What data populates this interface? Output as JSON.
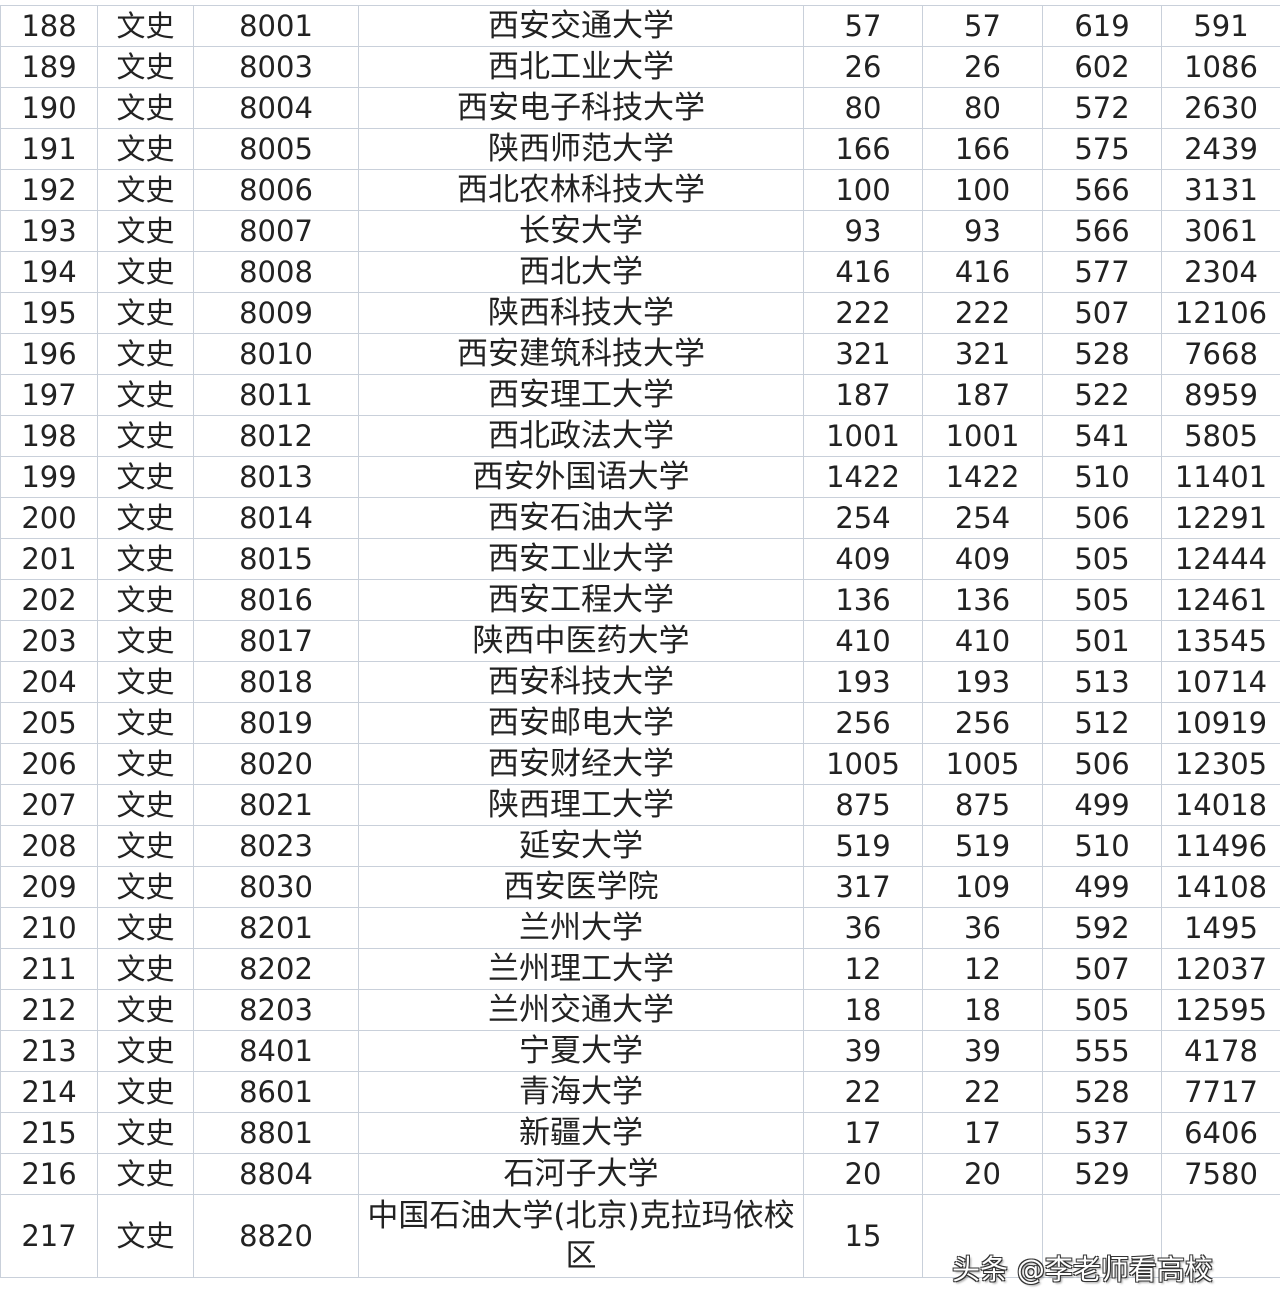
{
  "table": {
    "rows": [
      [
        "188",
        "文史",
        "8001",
        "西安交通大学",
        "57",
        "57",
        "619",
        "591"
      ],
      [
        "189",
        "文史",
        "8003",
        "西北工业大学",
        "26",
        "26",
        "602",
        "1086"
      ],
      [
        "190",
        "文史",
        "8004",
        "西安电子科技大学",
        "80",
        "80",
        "572",
        "2630"
      ],
      [
        "191",
        "文史",
        "8005",
        "陕西师范大学",
        "166",
        "166",
        "575",
        "2439"
      ],
      [
        "192",
        "文史",
        "8006",
        "西北农林科技大学",
        "100",
        "100",
        "566",
        "3131"
      ],
      [
        "193",
        "文史",
        "8007",
        "长安大学",
        "93",
        "93",
        "566",
        "3061"
      ],
      [
        "194",
        "文史",
        "8008",
        "西北大学",
        "416",
        "416",
        "577",
        "2304"
      ],
      [
        "195",
        "文史",
        "8009",
        "陕西科技大学",
        "222",
        "222",
        "507",
        "12106"
      ],
      [
        "196",
        "文史",
        "8010",
        "西安建筑科技大学",
        "321",
        "321",
        "528",
        "7668"
      ],
      [
        "197",
        "文史",
        "8011",
        "西安理工大学",
        "187",
        "187",
        "522",
        "8959"
      ],
      [
        "198",
        "文史",
        "8012",
        "西北政法大学",
        "1001",
        "1001",
        "541",
        "5805"
      ],
      [
        "199",
        "文史",
        "8013",
        "西安外国语大学",
        "1422",
        "1422",
        "510",
        "11401"
      ],
      [
        "200",
        "文史",
        "8014",
        "西安石油大学",
        "254",
        "254",
        "506",
        "12291"
      ],
      [
        "201",
        "文史",
        "8015",
        "西安工业大学",
        "409",
        "409",
        "505",
        "12444"
      ],
      [
        "202",
        "文史",
        "8016",
        "西安工程大学",
        "136",
        "136",
        "505",
        "12461"
      ],
      [
        "203",
        "文史",
        "8017",
        "陕西中医药大学",
        "410",
        "410",
        "501",
        "13545"
      ],
      [
        "204",
        "文史",
        "8018",
        "西安科技大学",
        "193",
        "193",
        "513",
        "10714"
      ],
      [
        "205",
        "文史",
        "8019",
        "西安邮电大学",
        "256",
        "256",
        "512",
        "10919"
      ],
      [
        "206",
        "文史",
        "8020",
        "西安财经大学",
        "1005",
        "1005",
        "506",
        "12305"
      ],
      [
        "207",
        "文史",
        "8021",
        "陕西理工大学",
        "875",
        "875",
        "499",
        "14018"
      ],
      [
        "208",
        "文史",
        "8023",
        "延安大学",
        "519",
        "519",
        "510",
        "11496"
      ],
      [
        "209",
        "文史",
        "8030",
        "西安医学院",
        "317",
        "109",
        "499",
        "14108"
      ],
      [
        "210",
        "文史",
        "8201",
        "兰州大学",
        "36",
        "36",
        "592",
        "1495"
      ],
      [
        "211",
        "文史",
        "8202",
        "兰州理工大学",
        "12",
        "12",
        "507",
        "12037"
      ],
      [
        "212",
        "文史",
        "8203",
        "兰州交通大学",
        "18",
        "18",
        "505",
        "12595"
      ],
      [
        "213",
        "文史",
        "8401",
        "宁夏大学",
        "39",
        "39",
        "555",
        "4178"
      ],
      [
        "214",
        "文史",
        "8601",
        "青海大学",
        "22",
        "22",
        "528",
        "7717"
      ],
      [
        "215",
        "文史",
        "8801",
        "新疆大学",
        "17",
        "17",
        "537",
        "6406"
      ],
      [
        "216",
        "文史",
        "8804",
        "石河子大学",
        "20",
        "20",
        "529",
        "7580"
      ],
      [
        "217",
        "文史",
        "8820",
        "中国石油大学(北京)克拉玛依校区",
        "15",
        "",
        "",
        ""
      ]
    ]
  },
  "watermark": "头条 @李老师看高校"
}
